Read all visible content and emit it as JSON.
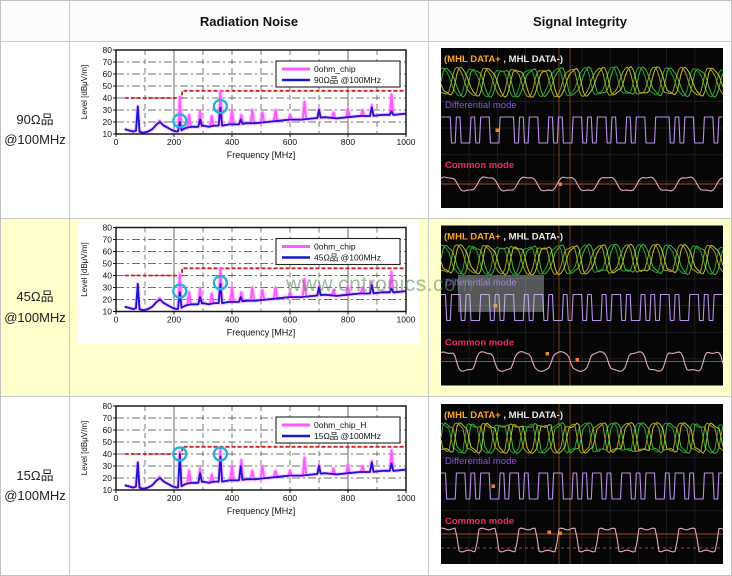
{
  "header": {
    "col_radiation": "Radiation Noise",
    "col_signal": "Signal Integrity"
  },
  "watermark": "www.cntronics.com",
  "colors": {
    "highlight_row": "#ffffcc",
    "noise_pink": "#ff5aff",
    "product_blue": "#1818cc",
    "limit_red": "#cc2020",
    "marker_cyan": "#2ab0d8",
    "table_border": "#c9c9c9"
  },
  "scope_style": {
    "bg": "#060606",
    "grid": "#1d1d24",
    "title_plus_color": "#ffa520",
    "title_minus_color": "#e8e8e8",
    "data_green": "#3db83d",
    "data_green2": "#2f9a2f",
    "data_yellow": "#c2c232",
    "data_yellow2": "#a0a020",
    "diff_wave": "#b890e8",
    "diff_label": "#8858e8",
    "common_wave": "#e2aab8",
    "common_label": "#ee2868",
    "ref_line": "#a84828",
    "cursor": "#7a4018",
    "dot": "#f08020"
  },
  "rows": [
    {
      "label_line1": "90Ω品",
      "label_line2": "@100MHz",
      "highlight": false,
      "scope": {
        "title_plus": "(MHL DATA+",
        "title_minus": " , MHL DATA-)",
        "label_diff": "Differential mode",
        "label_common": "Common mode",
        "mhl_square": 1.2,
        "diff_bits": "1101001011001110101100101001101011010010110011101011001101",
        "common_amp": 7,
        "common_square": 1.2,
        "common_period": 40,
        "ref_dashed": false,
        "dots": [
          [
            68,
            88
          ],
          [
            131,
            142
          ]
        ]
      }
    },
    {
      "label_line1": "45Ω品",
      "label_line2": "@100MHz",
      "highlight": true,
      "scope": {
        "title_plus": "(MHL DATA+",
        "title_minus": " , MHL DATA-)",
        "label_diff": "Differential mode",
        "label_common": "Common mode",
        "mhl_square": 1.6,
        "diff_bits": "1011010011010110010110100101101001011010010101101001101011",
        "common_amp": 9,
        "common_square": 2.5,
        "common_period": 38,
        "ref_dashed": false,
        "dots": [
          [
            66,
            86
          ],
          [
            118,
            134
          ],
          [
            148,
            140
          ]
        ]
      }
    },
    {
      "label_line1": "15Ω品",
      "label_line2": "@100MHz",
      "highlight": false,
      "scope": {
        "title_plus": "(MHL DATA+",
        "title_minus": " , MHL DATA-)",
        "label_diff": "Differential mode",
        "label_common": "Common mode",
        "mhl_square": 2.8,
        "diff_bits": "1001101011001011010011011001010110100110101100101101001101",
        "common_amp": 11,
        "common_square": 7,
        "common_period": 40,
        "ref_dashed": true,
        "dots": [
          [
            64,
            88
          ],
          [
            120,
            134
          ],
          [
            131,
            135
          ]
        ]
      }
    }
  ],
  "chart_data": [
    {
      "type": "line",
      "title": "",
      "xlabel": "Frequency [MHz]",
      "ylabel": "Level [dBμV/m]",
      "xlim": [
        0,
        1000
      ],
      "ylim": [
        10,
        80
      ],
      "xticks": [
        0,
        200,
        400,
        600,
        800,
        1000
      ],
      "yticks": [
        10,
        20,
        30,
        40,
        50,
        60,
        70,
        80
      ],
      "grid": true,
      "legend_position": "top-right",
      "legend": [
        "0ohm_chip",
        "90Ω品 @100MHz"
      ],
      "legend_colors": [
        "#ff5aff",
        "#1818cc"
      ],
      "limit_line": {
        "color": "#cc2020",
        "points": [
          [
            30,
            40
          ],
          [
            228,
            40
          ],
          [
            228,
            46
          ],
          [
            1000,
            46
          ]
        ]
      },
      "baseline": [
        [
          30,
          14
        ],
        [
          45,
          13
        ],
        [
          60,
          12
        ],
        [
          70,
          13
        ],
        [
          80,
          12
        ],
        [
          95,
          11
        ],
        [
          110,
          12
        ],
        [
          125,
          14
        ],
        [
          140,
          18
        ],
        [
          152,
          20
        ],
        [
          165,
          17
        ],
        [
          180,
          15
        ],
        [
          195,
          13
        ],
        [
          210,
          12
        ],
        [
          225,
          13
        ],
        [
          240,
          15
        ],
        [
          260,
          16
        ],
        [
          280,
          16
        ],
        [
          300,
          17
        ],
        [
          320,
          16
        ],
        [
          340,
          17
        ],
        [
          365,
          17
        ],
        [
          390,
          18
        ],
        [
          420,
          18
        ],
        [
          450,
          19
        ],
        [
          480,
          19
        ],
        [
          520,
          20
        ],
        [
          560,
          21
        ],
        [
          600,
          22
        ],
        [
          640,
          22
        ],
        [
          680,
          23
        ],
        [
          720,
          24
        ],
        [
          760,
          23
        ],
        [
          800,
          24
        ],
        [
          840,
          25
        ],
        [
          880,
          25
        ],
        [
          920,
          26
        ],
        [
          960,
          26
        ],
        [
          1000,
          27
        ]
      ],
      "series": [
        {
          "name": "0ohm_chip",
          "color": "#ff5aff",
          "spikes": [
            [
              75,
              33
            ],
            [
              150,
              21
            ],
            [
              220,
              41
            ],
            [
              252,
              26
            ],
            [
              290,
              29
            ],
            [
              330,
              25
            ],
            [
              360,
              46
            ],
            [
              400,
              30
            ],
            [
              432,
              26
            ],
            [
              470,
              30
            ],
            [
              505,
              28
            ],
            [
              550,
              30
            ],
            [
              600,
              26
            ],
            [
              650,
              37
            ],
            [
              700,
              31
            ],
            [
              750,
              28
            ],
            [
              800,
              31
            ],
            [
              850,
              30
            ],
            [
              882,
              34
            ],
            [
              950,
              43
            ]
          ]
        },
        {
          "name": "90Ω品 @100MHz",
          "color": "#1818cc",
          "spikes": [
            [
              75,
              33
            ],
            [
              220,
              20
            ],
            [
              290,
              22
            ],
            [
              360,
              32
            ],
            [
              430,
              22
            ],
            [
              700,
              30
            ],
            [
              882,
              32
            ],
            [
              950,
              29
            ]
          ]
        }
      ],
      "markers": {
        "color": "#2ab0d8",
        "points": [
          [
            220,
            21
          ],
          [
            360,
            33
          ]
        ]
      }
    },
    {
      "type": "line",
      "title": "",
      "xlabel": "Frequency [MHz]",
      "ylabel": "Level [dBμV/m]",
      "xlim": [
        0,
        1000
      ],
      "ylim": [
        10,
        80
      ],
      "xticks": [
        0,
        200,
        400,
        600,
        800,
        1000
      ],
      "yticks": [
        10,
        20,
        30,
        40,
        50,
        60,
        70,
        80
      ],
      "grid": true,
      "legend_position": "top-right",
      "legend": [
        "0ohm_chip",
        "45Ω品 @100MHz"
      ],
      "legend_colors": [
        "#ff5aff",
        "#1818cc"
      ],
      "limit_line": {
        "color": "#cc2020",
        "points": [
          [
            30,
            40
          ],
          [
            228,
            40
          ],
          [
            228,
            46
          ],
          [
            1000,
            46
          ]
        ]
      },
      "baseline": [
        [
          30,
          14
        ],
        [
          45,
          13
        ],
        [
          60,
          12
        ],
        [
          70,
          13
        ],
        [
          80,
          12
        ],
        [
          95,
          11
        ],
        [
          110,
          12
        ],
        [
          125,
          14
        ],
        [
          140,
          18
        ],
        [
          152,
          20
        ],
        [
          165,
          17
        ],
        [
          180,
          15
        ],
        [
          195,
          13
        ],
        [
          210,
          12
        ],
        [
          225,
          13
        ],
        [
          240,
          15
        ],
        [
          260,
          16
        ],
        [
          280,
          16
        ],
        [
          300,
          17
        ],
        [
          320,
          16
        ],
        [
          340,
          17
        ],
        [
          365,
          17
        ],
        [
          390,
          18
        ],
        [
          420,
          18
        ],
        [
          450,
          19
        ],
        [
          480,
          19
        ],
        [
          520,
          20
        ],
        [
          560,
          21
        ],
        [
          600,
          22
        ],
        [
          640,
          22
        ],
        [
          680,
          23
        ],
        [
          720,
          24
        ],
        [
          760,
          23
        ],
        [
          800,
          24
        ],
        [
          840,
          25
        ],
        [
          880,
          25
        ],
        [
          920,
          26
        ],
        [
          960,
          26
        ],
        [
          1000,
          27
        ]
      ],
      "series": [
        {
          "name": "0ohm_chip",
          "color": "#ff5aff",
          "spikes": [
            [
              75,
              33
            ],
            [
              150,
              21
            ],
            [
              220,
              41
            ],
            [
              252,
              26
            ],
            [
              290,
              29
            ],
            [
              330,
              25
            ],
            [
              360,
              46
            ],
            [
              400,
              30
            ],
            [
              432,
              26
            ],
            [
              470,
              30
            ],
            [
              505,
              28
            ],
            [
              550,
              30
            ],
            [
              600,
              26
            ],
            [
              650,
              37
            ],
            [
              700,
              31
            ],
            [
              750,
              28
            ],
            [
              800,
              31
            ],
            [
              850,
              30
            ],
            [
              882,
              34
            ],
            [
              950,
              43
            ]
          ]
        },
        {
          "name": "45Ω品 @100MHz",
          "color": "#1818cc",
          "spikes": [
            [
              75,
              33
            ],
            [
              220,
              26
            ],
            [
              290,
              22
            ],
            [
              360,
              33
            ],
            [
              430,
              22
            ],
            [
              700,
              30
            ],
            [
              882,
              32
            ],
            [
              950,
              29
            ]
          ]
        }
      ],
      "markers": {
        "color": "#2ab0d8",
        "points": [
          [
            220,
            27
          ],
          [
            360,
            34
          ]
        ]
      }
    },
    {
      "type": "line",
      "title": "",
      "xlabel": "Frequency [MHz]",
      "ylabel": "Level [dBμV/m]",
      "xlim": [
        0,
        1000
      ],
      "ylim": [
        10,
        80
      ],
      "xticks": [
        0,
        200,
        400,
        600,
        800,
        1000
      ],
      "yticks": [
        10,
        20,
        30,
        40,
        50,
        60,
        70,
        80
      ],
      "grid": true,
      "legend_position": "top-right",
      "legend": [
        "0ohm_chip_H",
        "15Ω品 @100MHz"
      ],
      "legend_colors": [
        "#ff5aff",
        "#1818cc"
      ],
      "limit_line": {
        "color": "#cc2020",
        "points": [
          [
            30,
            40
          ],
          [
            228,
            40
          ],
          [
            228,
            46
          ],
          [
            1000,
            46
          ]
        ]
      },
      "baseline": [
        [
          30,
          14
        ],
        [
          45,
          13
        ],
        [
          60,
          12
        ],
        [
          70,
          13
        ],
        [
          80,
          12
        ],
        [
          95,
          11
        ],
        [
          110,
          12
        ],
        [
          125,
          14
        ],
        [
          140,
          18
        ],
        [
          152,
          20
        ],
        [
          165,
          17
        ],
        [
          180,
          15
        ],
        [
          195,
          13
        ],
        [
          210,
          12
        ],
        [
          225,
          13
        ],
        [
          240,
          15
        ],
        [
          260,
          16
        ],
        [
          280,
          16
        ],
        [
          300,
          17
        ],
        [
          320,
          16
        ],
        [
          340,
          17
        ],
        [
          365,
          17
        ],
        [
          390,
          18
        ],
        [
          420,
          18
        ],
        [
          450,
          19
        ],
        [
          480,
          19
        ],
        [
          520,
          20
        ],
        [
          560,
          21
        ],
        [
          600,
          22
        ],
        [
          640,
          22
        ],
        [
          680,
          23
        ],
        [
          720,
          24
        ],
        [
          760,
          23
        ],
        [
          800,
          24
        ],
        [
          840,
          25
        ],
        [
          880,
          25
        ],
        [
          920,
          26
        ],
        [
          960,
          26
        ],
        [
          1000,
          27
        ]
      ],
      "series": [
        {
          "name": "0ohm_chip_H",
          "color": "#ff5aff",
          "spikes": [
            [
              75,
              33
            ],
            [
              150,
              21
            ],
            [
              220,
              42
            ],
            [
              252,
              26
            ],
            [
              290,
              28
            ],
            [
              330,
              23
            ],
            [
              360,
              44
            ],
            [
              400,
              30
            ],
            [
              432,
              35
            ],
            [
              470,
              26
            ],
            [
              505,
              30
            ],
            [
              550,
              26
            ],
            [
              600,
              26
            ],
            [
              650,
              37
            ],
            [
              700,
              31
            ],
            [
              750,
              28
            ],
            [
              800,
              31
            ],
            [
              850,
              30
            ],
            [
              882,
              34
            ],
            [
              950,
              43
            ]
          ]
        },
        {
          "name": "15Ω品 @100MHz",
          "color": "#1818cc",
          "spikes": [
            [
              75,
              33
            ],
            [
              220,
              40
            ],
            [
              290,
              24
            ],
            [
              360,
              38
            ],
            [
              430,
              30
            ],
            [
              700,
              30
            ],
            [
              882,
              33
            ],
            [
              950,
              32
            ]
          ]
        }
      ],
      "markers": {
        "color": "#2ab0d8",
        "points": [
          [
            220,
            40
          ],
          [
            360,
            40
          ]
        ]
      }
    }
  ]
}
